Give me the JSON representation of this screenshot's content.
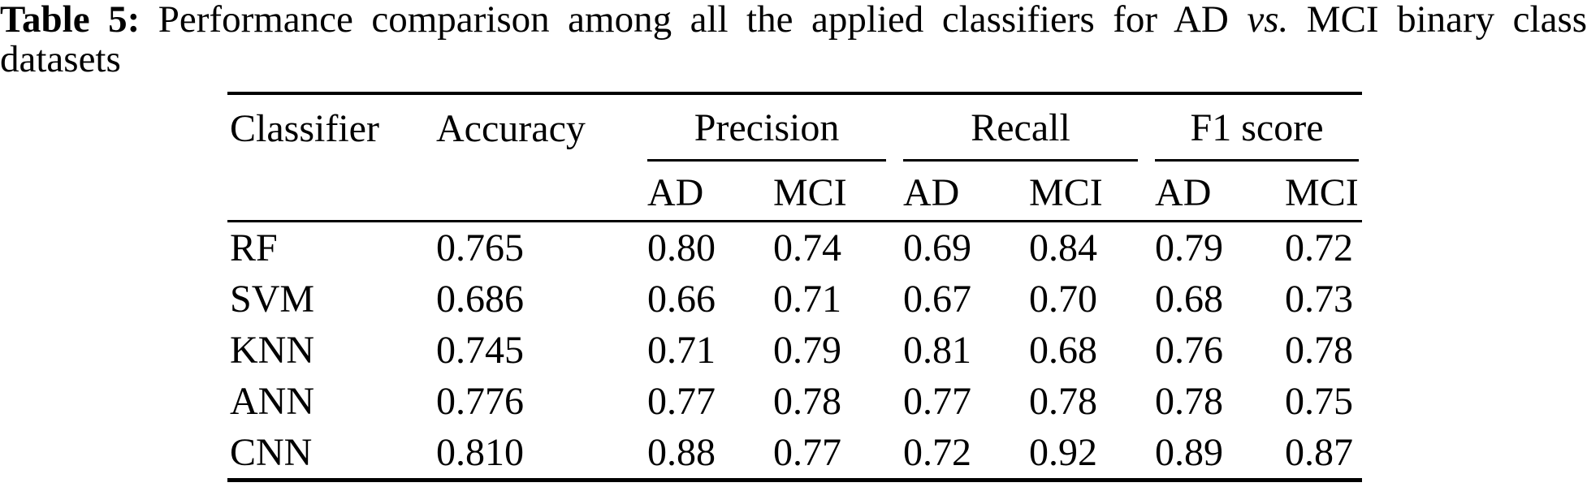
{
  "caption": {
    "label": "Table 5:",
    "line1_pre": "Performance comparison among all the applied classifiers for AD",
    "line1_italic": "vs.",
    "line1_post": "MCI binary class",
    "line2": "datasets"
  },
  "table": {
    "col_classifier": "Classifier",
    "col_accuracy": "Accuracy",
    "groups": [
      "Precision",
      "Recall",
      "F1 score"
    ],
    "subheaders": [
      "AD",
      "MCI",
      "AD",
      "MCI",
      "AD",
      "MCI"
    ],
    "rows": [
      {
        "name": "RF",
        "accuracy": "0.765",
        "values": [
          "0.80",
          "0.74",
          "0.69",
          "0.84",
          "0.79",
          "0.72"
        ]
      },
      {
        "name": "SVM",
        "accuracy": "0.686",
        "values": [
          "0.66",
          "0.71",
          "0.67",
          "0.70",
          "0.68",
          "0.73"
        ]
      },
      {
        "name": "KNN",
        "accuracy": "0.745",
        "values": [
          "0.71",
          "0.79",
          "0.81",
          "0.68",
          "0.76",
          "0.78"
        ]
      },
      {
        "name": "ANN",
        "accuracy": "0.776",
        "values": [
          "0.77",
          "0.78",
          "0.77",
          "0.78",
          "0.78",
          "0.75"
        ]
      },
      {
        "name": "CNN",
        "accuracy": "0.810",
        "values": [
          "0.88",
          "0.77",
          "0.72",
          "0.92",
          "0.89",
          "0.87"
        ]
      }
    ]
  },
  "colors": {
    "text": "#000000",
    "background": "#ffffff",
    "rule": "#000000"
  }
}
